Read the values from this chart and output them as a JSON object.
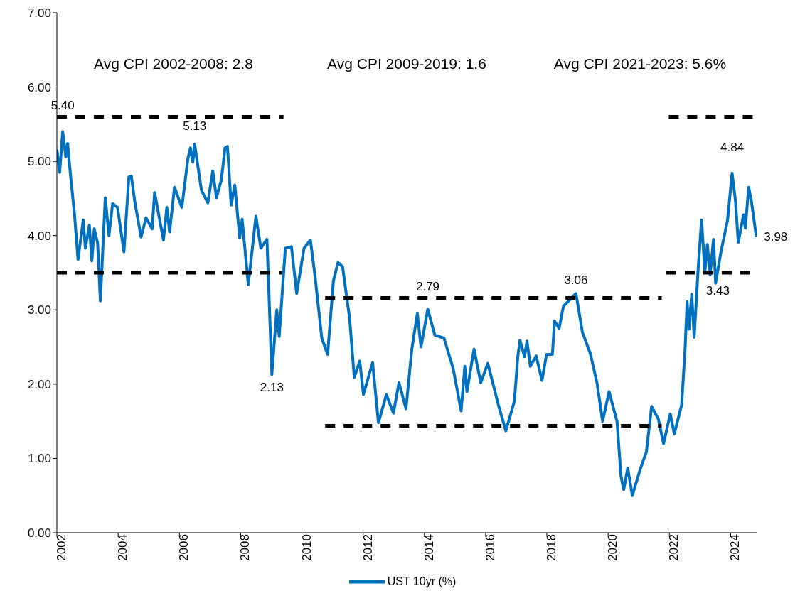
{
  "chart_data": {
    "type": "line",
    "series": [
      {
        "name": "UST 10yr (%)",
        "color": "#0070c0",
        "line_style": "solid",
        "x": [
          2002.0,
          2002.09,
          2002.19,
          2002.29,
          2002.35,
          2002.45,
          2002.57,
          2002.69,
          2002.86,
          2002.93,
          2003.06,
          2003.14,
          2003.22,
          2003.33,
          2003.42,
          2003.58,
          2003.7,
          2003.82,
          2003.98,
          2004.19,
          2004.35,
          2004.43,
          2004.55,
          2004.75,
          2004.91,
          2005.11,
          2005.19,
          2005.48,
          2005.59,
          2005.68,
          2005.84,
          2006.08,
          2006.28,
          2006.36,
          2006.44,
          2006.5,
          2006.72,
          2006.93,
          2007.09,
          2007.21,
          2007.37,
          2007.49,
          2007.57,
          2007.69,
          2007.81,
          2007.97,
          2008.05,
          2008.25,
          2008.5,
          2008.66,
          2008.86,
          2009.02,
          2009.18,
          2009.26,
          2009.46,
          2009.66,
          2009.83,
          2010.07,
          2010.28,
          2010.43,
          2010.65,
          2010.84,
          2011.03,
          2011.18,
          2011.33,
          2011.56,
          2011.71,
          2011.89,
          2012.01,
          2012.31,
          2012.5,
          2012.76,
          2012.99,
          2013.17,
          2013.4,
          2013.59,
          2013.77,
          2013.89,
          2014.11,
          2014.34,
          2014.64,
          2014.94,
          2015.2,
          2015.32,
          2015.39,
          2015.62,
          2015.84,
          2016.07,
          2016.41,
          2016.66,
          2016.94,
          2017.05,
          2017.12,
          2017.27,
          2017.35,
          2017.46,
          2017.65,
          2017.84,
          2017.99,
          2018.18,
          2018.25,
          2018.4,
          2018.54,
          2018.95,
          2019.16,
          2019.42,
          2019.64,
          2019.82,
          2020.03,
          2020.29,
          2020.42,
          2020.51,
          2020.64,
          2020.79,
          2021.03,
          2021.25,
          2021.42,
          2021.64,
          2021.81,
          2022.03,
          2022.16,
          2022.4,
          2022.51,
          2022.58,
          2022.64,
          2022.73,
          2022.81,
          2022.94,
          2023.05,
          2023.16,
          2023.24,
          2023.33,
          2023.44,
          2023.51,
          2023.68,
          2023.9,
          2024.05,
          2024.16,
          2024.25,
          2024.42,
          2024.48,
          2024.59,
          2024.68,
          2024.84
        ],
        "values": [
          5.16,
          4.85,
          5.4,
          5.06,
          5.24,
          4.79,
          4.31,
          3.68,
          4.21,
          3.83,
          4.14,
          3.66,
          4.09,
          3.9,
          3.12,
          4.51,
          4.0,
          4.43,
          4.38,
          3.78,
          4.79,
          4.8,
          4.44,
          3.98,
          4.24,
          4.09,
          4.58,
          3.94,
          4.38,
          4.05,
          4.65,
          4.38,
          5.04,
          5.18,
          4.99,
          5.23,
          4.61,
          4.44,
          4.87,
          4.51,
          4.75,
          5.18,
          5.2,
          4.41,
          4.68,
          3.97,
          4.22,
          3.34,
          4.26,
          3.83,
          3.95,
          2.13,
          3.0,
          2.64,
          3.83,
          3.85,
          3.22,
          3.83,
          3.94,
          3.45,
          2.62,
          2.4,
          3.39,
          3.64,
          3.58,
          2.88,
          2.09,
          2.31,
          1.86,
          2.29,
          1.48,
          1.86,
          1.61,
          2.02,
          1.67,
          2.47,
          2.95,
          2.5,
          3.01,
          2.66,
          2.62,
          2.21,
          1.64,
          2.24,
          1.9,
          2.47,
          2.02,
          2.28,
          1.73,
          1.37,
          1.77,
          2.37,
          2.59,
          2.37,
          2.58,
          2.24,
          2.38,
          2.05,
          2.4,
          2.4,
          2.85,
          2.75,
          3.05,
          3.22,
          2.7,
          2.41,
          2.01,
          1.5,
          1.9,
          1.5,
          0.76,
          0.58,
          0.87,
          0.5,
          0.83,
          1.09,
          1.7,
          1.53,
          1.2,
          1.6,
          1.33,
          1.72,
          2.45,
          3.11,
          2.74,
          3.21,
          2.63,
          3.55,
          4.21,
          3.51,
          3.88,
          3.47,
          3.95,
          3.36,
          3.77,
          4.21,
          4.84,
          4.46,
          3.91,
          4.28,
          4.1,
          4.65,
          4.46,
          3.98
        ]
      },
      {
        "color": "#000000",
        "line_style": "dashed",
        "x": [
          2002,
          2009.4
        ],
        "values": [
          5.6,
          5.6
        ]
      },
      {
        "color": "#000000",
        "line_style": "dashed",
        "x": [
          2002,
          2009.35
        ],
        "values": [
          3.5,
          3.5
        ]
      },
      {
        "color": "#000000",
        "line_style": "dashed",
        "x": [
          2010.76,
          2021.75
        ],
        "values": [
          3.16,
          3.16
        ]
      },
      {
        "color": "#000000",
        "line_style": "dashed",
        "x": [
          2010.76,
          2021.75
        ],
        "values": [
          1.44,
          1.44
        ]
      },
      {
        "color": "#000000",
        "line_style": "dashed",
        "x": [
          2021.98,
          2024.85
        ],
        "values": [
          5.6,
          5.6
        ]
      },
      {
        "color": "#000000",
        "line_style": "dashed",
        "x": [
          2021.9,
          2024.85
        ],
        "values": [
          3.5,
          3.5
        ]
      }
    ],
    "annotations": [
      "Avg CPI 2002-2008: 2.8",
      "Avg CPI 2009-2019: 1.6",
      "Avg CPI 2021-2023: 5.6%",
      {
        "text": "5.40",
        "x": 2002.19,
        "y": 5.4
      },
      {
        "text": "5.13",
        "x": 2006.5,
        "y": 5.13
      },
      {
        "text": "2.13",
        "x": 2009.02,
        "y": 2.13
      },
      {
        "text": "2.79",
        "x": 2014.11,
        "y": 2.79
      },
      {
        "text": "3.06",
        "x": 2018.95,
        "y": 3.06
      },
      {
        "text": "4.84",
        "x": 2024.05,
        "y": 4.84
      },
      {
        "text": "3.43",
        "x": 2023.58,
        "y": 3.43
      },
      {
        "text": "3.98",
        "x": 2024.84,
        "y": 3.98
      }
    ],
    "xlim": [
      2002,
      2024.85
    ],
    "xticks": [
      2002,
      2004,
      2006,
      2008,
      2010,
      2012,
      2014,
      2016,
      2018,
      2020,
      2022,
      2024
    ],
    "ylim": [
      0,
      7
    ],
    "yticks": [
      {
        "value": 0,
        "label": "0.00"
      },
      {
        "value": 1,
        "label": "1.00"
      },
      {
        "value": 2,
        "label": "2.00"
      },
      {
        "value": 3,
        "label": "3.00"
      },
      {
        "value": 4,
        "label": "4.00"
      },
      {
        "value": 5,
        "label": "5.00"
      },
      {
        "value": 6,
        "label": "6.00"
      },
      {
        "value": 7,
        "label": "7.00"
      }
    ],
    "grid": false,
    "legend": "bottom",
    "marker": "none"
  }
}
